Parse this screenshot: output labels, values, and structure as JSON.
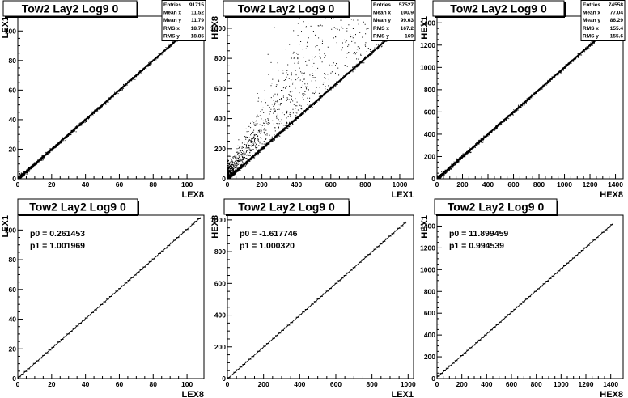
{
  "panels": [
    {
      "title": "Tow2 Lay2 Log9 0",
      "xlabel": "LEX8",
      "ylabel": "LEX1",
      "xlim": [
        0,
        110
      ],
      "ylim": [
        0,
        110
      ],
      "xticks": [
        0,
        20,
        40,
        60,
        80,
        100
      ],
      "yticks": [
        0,
        20,
        40,
        60,
        80,
        100
      ],
      "stats": [
        {
          "label": "Entries",
          "value": "91715"
        },
        {
          "label": "Mean x",
          "value": "11.52"
        },
        {
          "label": "Mean y",
          "value": "11.79"
        },
        {
          "label": "RMS x",
          "value": "18.79"
        },
        {
          "label": "RMS y",
          "value": "18.85"
        }
      ],
      "fit": null
    },
    {
      "title": "Tow2 Lay2 Log9 0",
      "xlabel": "LEX1",
      "ylabel": "HEX8",
      "xlim": [
        0,
        1080
      ],
      "ylim": [
        0,
        1080
      ],
      "xticks": [
        0,
        200,
        400,
        600,
        800,
        1000
      ],
      "yticks": [
        0,
        200,
        400,
        600,
        800,
        1000
      ],
      "stats": [
        {
          "label": "Entries",
          "value": "57527"
        },
        {
          "label": "Mean x",
          "value": "100.9"
        },
        {
          "label": "Mean y",
          "value": "99.63"
        },
        {
          "label": "RMS x",
          "value": "167.2"
        },
        {
          "label": "RMS y",
          "value": "169"
        }
      ],
      "fit": null
    },
    {
      "title": "Tow2 Lay2 Log9 0",
      "xlabel": "HEX8",
      "ylabel": "HEX1",
      "xlim": [
        0,
        1460
      ],
      "ylim": [
        0,
        1460
      ],
      "xticks": [
        0,
        200,
        400,
        600,
        800,
        1000,
        1200,
        1400
      ],
      "yticks": [
        0,
        200,
        400,
        600,
        800,
        1000,
        1200,
        1400
      ],
      "stats": [
        {
          "label": "Entries",
          "value": "74558"
        },
        {
          "label": "Mean x",
          "value": "77.04"
        },
        {
          "label": "Mean y",
          "value": "86.29"
        },
        {
          "label": "RMS x",
          "value": "155.4"
        },
        {
          "label": "RMS y",
          "value": "155.6"
        }
      ],
      "fit": null
    },
    {
      "title": "Tow2 Lay2 Log9 0",
      "xlabel": "LEX8",
      "ylabel": "LEX1",
      "xlim": [
        0,
        110
      ],
      "ylim": [
        0,
        110
      ],
      "xticks": [
        0,
        20,
        40,
        60,
        80,
        100
      ],
      "yticks": [
        0,
        20,
        40,
        60,
        80,
        100
      ],
      "stats": [],
      "fit": {
        "p0_label": "p0 = 0.261453",
        "p1_label": "p1 = 1.001969",
        "p0": 0.261453,
        "p1": 1.001969,
        "xmax": 108
      }
    },
    {
      "title": "Tow2 Lay2 Log9 0",
      "xlabel": "LEX1",
      "ylabel": "HEX8",
      "xlim": [
        0,
        1030
      ],
      "ylim": [
        0,
        1030
      ],
      "xticks": [
        0,
        200,
        400,
        600,
        800,
        1000
      ],
      "yticks": [
        0,
        200,
        400,
        600,
        800,
        1000
      ],
      "stats": [],
      "fit": {
        "p0_label": "p0 = -1.617746",
        "p1_label": "p1 = 1.000320",
        "p0": -1.617746,
        "p1": 1.00032,
        "xmax": 990
      }
    },
    {
      "title": "Tow2 Lay2 Log9 0",
      "xlabel": "HEX8",
      "ylabel": "HEX1",
      "xlim": [
        0,
        1500
      ],
      "ylim": [
        0,
        1500
      ],
      "xticks": [
        0,
        200,
        400,
        600,
        800,
        1000,
        1200,
        1400
      ],
      "yticks": [
        0,
        200,
        400,
        600,
        800,
        1000,
        1200,
        1400
      ],
      "stats": [],
      "fit": {
        "p0_label": "p0 = 11.899459",
        "p1_label": "p1 = 0.994539",
        "p0": 11.899459,
        "p1": 0.994539,
        "xmax": 1420
      }
    }
  ],
  "chart_data": [
    {
      "type": "scatter",
      "title": "Tow2 Lay2 Log9 0",
      "xlabel": "LEX8",
      "ylabel": "LEX1",
      "xlim": [
        0,
        110
      ],
      "ylim": [
        0,
        110
      ],
      "description_values": {
        "relation": "y = x",
        "x_range": [
          0,
          105
        ]
      }
    },
    {
      "type": "scatter",
      "title": "Tow2 Lay2 Log9 0",
      "xlabel": "LEX1",
      "ylabel": "HEX8",
      "xlim": [
        0,
        1080
      ],
      "ylim": [
        0,
        1080
      ],
      "description_values": {
        "relation": "y = x",
        "x_range": [
          0,
          1050
        ]
      }
    },
    {
      "type": "scatter",
      "title": "Tow2 Lay2 Log9 0",
      "xlabel": "HEX8",
      "ylabel": "HEX1",
      "xlim": [
        0,
        1460
      ],
      "ylim": [
        0,
        1460
      ],
      "description_values": {
        "relation": "y = x",
        "x_range": [
          0,
          1420
        ]
      }
    },
    {
      "type": "line",
      "title": "Tow2 Lay2 Log9 0",
      "xlabel": "LEX8",
      "ylabel": "LEX1",
      "xlim": [
        0,
        110
      ],
      "ylim": [
        0,
        110
      ],
      "fit": {
        "p0": 0.261453,
        "p1": 1.001969
      }
    },
    {
      "type": "line",
      "title": "Tow2 Lay2 Log9 0",
      "xlabel": "LEX1",
      "ylabel": "HEX8",
      "xlim": [
        0,
        1030
      ],
      "ylim": [
        0,
        1030
      ],
      "fit": {
        "p0": -1.617746,
        "p1": 1.00032
      }
    },
    {
      "type": "line",
      "title": "Tow2 Lay2 Log9 0",
      "xlabel": "HEX8",
      "ylabel": "HEX1",
      "xlim": [
        0,
        1500
      ],
      "ylim": [
        0,
        1500
      ],
      "fit": {
        "p0": 11.899459,
        "p1": 0.994539
      }
    }
  ]
}
